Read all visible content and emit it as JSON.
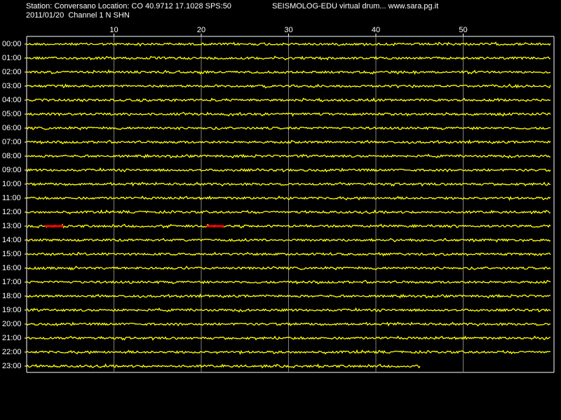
{
  "chart_data": {
    "type": "drum",
    "title": "Station: Conversano Location: CO 40.9712 17.1028 SPS:50",
    "subtitle": "2011/01/20  Channel 1 N SHN",
    "header_right": "SEISMOLOG-EDU virtual drum... www.sara.pg.it",
    "xlim": [
      0,
      60
    ],
    "xticks": [
      10,
      20,
      30,
      40,
      50
    ],
    "trace_color": "#ffff00",
    "event_color": "#ff0000",
    "rows": [
      {
        "label": "00:00",
        "end": 60
      },
      {
        "label": "01:00",
        "end": 60
      },
      {
        "label": "02:00",
        "end": 60
      },
      {
        "label": "03:00",
        "end": 60
      },
      {
        "label": "04:00",
        "end": 60
      },
      {
        "label": "05:00",
        "end": 60
      },
      {
        "label": "06:00",
        "end": 60
      },
      {
        "label": "07:00",
        "end": 60
      },
      {
        "label": "08:00",
        "end": 60
      },
      {
        "label": "09:00",
        "end": 60
      },
      {
        "label": "10:00",
        "end": 60
      },
      {
        "label": "11:00",
        "end": 60
      },
      {
        "label": "12:00",
        "end": 60
      },
      {
        "label": "13:00",
        "end": 60
      },
      {
        "label": "14:00",
        "end": 60
      },
      {
        "label": "15:00",
        "end": 60
      },
      {
        "label": "16:00",
        "end": 60
      },
      {
        "label": "17:00",
        "end": 60
      },
      {
        "label": "18:00",
        "end": 60
      },
      {
        "label": "19:00",
        "end": 60
      },
      {
        "label": "20:00",
        "end": 60
      },
      {
        "label": "21:00",
        "end": 60
      },
      {
        "label": "22:00",
        "end": 60
      },
      {
        "label": "23:00",
        "end": 45.1
      }
    ],
    "events": [
      {
        "row": 13,
        "start": 2.1,
        "end": 4.2
      },
      {
        "row": 13,
        "start": 20.6,
        "end": 22.6
      }
    ]
  }
}
